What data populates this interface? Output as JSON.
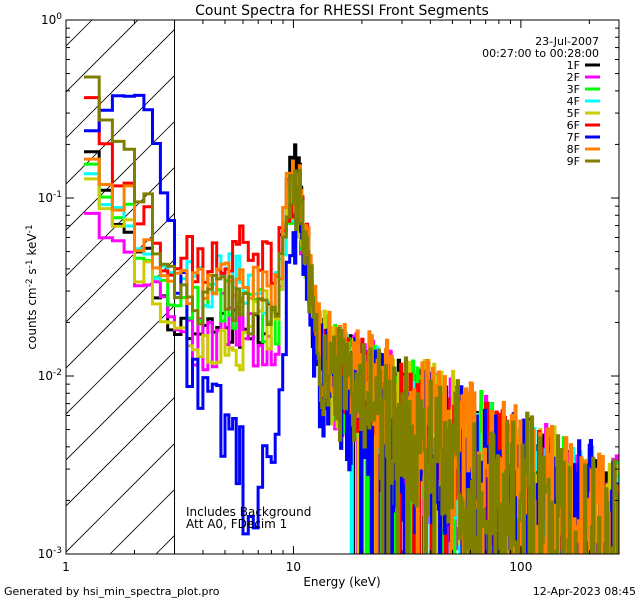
{
  "chart_data": {
    "type": "line",
    "title": "Count Spectra for RHESSI Front Segments",
    "xlabel": "Energy (keV)",
    "ylabel_parts": {
      "base": "counts cm",
      "exp1": "-2",
      "mid": " s",
      "exp2": "-1",
      "tail": " keV",
      "exp3": "-1"
    },
    "xscale": "log",
    "yscale": "log",
    "xlim": [
      1,
      270
    ],
    "ylim": [
      0.001,
      1
    ],
    "x_ticks": [
      {
        "value": 1,
        "label": "1"
      },
      {
        "value": 10,
        "label": "10"
      },
      {
        "value": 100,
        "label": "100"
      }
    ],
    "y_ticks": [
      {
        "value": 1,
        "base": "10",
        "exp": "0"
      },
      {
        "value": 0.1,
        "base": "10",
        "exp": "-1"
      },
      {
        "value": 0.01,
        "base": "10",
        "exp": "-2"
      },
      {
        "value": 0.001,
        "base": "10",
        "exp": "-3"
      }
    ],
    "date": "23-Jul-2007",
    "time_range": "00:27:00 to 00:28:00",
    "shaded_region": {
      "xmin": 1,
      "xmax": 3
    },
    "annotations": [
      "Includes Background",
      "Att A0, FDecim 1"
    ],
    "series": [
      {
        "name": "1F",
        "color": "#000000",
        "low": [
          0.2,
          0.17,
          0.12,
          0.075,
          0.058,
          0.046,
          0.04,
          0.032,
          0.026,
          0.021,
          0.019,
          0.02
        ],
        "mid": [
          0.019,
          0.02,
          0.021,
          0.019
        ],
        "spike": [
          0.045,
          0.09,
          0.14,
          0.155,
          0.13,
          0.085,
          0.05,
          0.03,
          0.02,
          0.016
        ],
        "tail_ref": 0.012,
        "jitter": 0.25,
        "seed": 11
      },
      {
        "name": "2F",
        "color": "#ff00ff",
        "low": [
          0.09,
          0.085,
          0.065,
          0.05,
          0.042,
          0.038,
          0.034,
          0.03,
          0.025,
          0.02,
          0.016,
          0.014
        ],
        "mid": [
          0.016,
          0.02,
          0.015,
          0.014
        ],
        "spike": [
          0.03,
          0.06,
          0.09,
          0.1,
          0.095,
          0.07,
          0.045,
          0.03,
          0.02,
          0.015
        ],
        "tail_ref": 0.011,
        "jitter": 0.3,
        "seed": 22
      },
      {
        "name": "3F",
        "color": "#00ff00",
        "low": [
          0.17,
          0.15,
          0.11,
          0.08,
          0.06,
          0.048,
          0.04,
          0.035,
          0.03,
          0.027,
          0.025,
          0.024
        ],
        "mid": [
          0.024,
          0.025,
          0.022,
          0.02
        ],
        "spike": [
          0.04,
          0.07,
          0.1,
          0.11,
          0.1,
          0.075,
          0.05,
          0.032,
          0.022,
          0.017
        ],
        "tail_ref": 0.012,
        "jitter": 0.28,
        "seed": 33
      },
      {
        "name": "4F",
        "color": "#00ffff",
        "low": [
          0.15,
          0.13,
          0.1,
          0.075,
          0.058,
          0.048,
          0.042,
          0.038,
          0.035,
          0.033,
          0.032,
          0.034
        ],
        "mid": [
          0.034,
          0.036,
          0.032,
          0.03
        ],
        "spike": [
          0.038,
          0.065,
          0.09,
          0.1,
          0.095,
          0.07,
          0.048,
          0.03,
          0.022,
          0.017
        ],
        "tail_ref": 0.012,
        "jitter": 0.25,
        "seed": 44
      },
      {
        "name": "5F",
        "color": "#cccc00",
        "low": [
          0.14,
          0.12,
          0.095,
          0.07,
          0.05,
          0.04,
          0.034,
          0.03,
          0.024,
          0.02,
          0.017,
          0.016
        ],
        "mid": [
          0.016,
          0.014,
          0.018,
          0.02
        ],
        "spike": [
          0.035,
          0.06,
          0.085,
          0.095,
          0.09,
          0.065,
          0.045,
          0.03,
          0.021,
          0.016
        ],
        "tail_ref": 0.012,
        "jitter": 0.3,
        "seed": 55
      },
      {
        "name": "6F",
        "color": "#ff0000",
        "low": [
          0.4,
          0.33,
          0.22,
          0.14,
          0.1,
          0.075,
          0.058,
          0.05,
          0.045,
          0.043,
          0.042,
          0.045
        ],
        "mid": [
          0.045,
          0.05,
          0.047,
          0.043
        ],
        "spike": [
          0.05,
          0.07,
          0.09,
          0.1,
          0.095,
          0.075,
          0.052,
          0.034,
          0.024,
          0.018
        ],
        "tail_ref": 0.012,
        "jitter": 0.25,
        "seed": 66
      },
      {
        "name": "7F",
        "color": "#0000ff",
        "low": [
          0.26,
          0.3,
          0.34,
          0.37,
          0.37,
          0.35,
          0.3,
          0.2,
          0.12,
          0.07,
          0.035,
          0.02
        ],
        "mid": [
          0.009,
          0.004,
          0.002,
          0.003
        ],
        "spike": [
          0.008,
          0.02,
          0.04,
          0.06,
          0.07,
          0.055,
          0.035,
          0.022,
          0.015,
          0.011
        ],
        "tail_ref": 0.009,
        "jitter": 0.35,
        "seed": 77
      },
      {
        "name": "8F",
        "color": "#ff8000",
        "low": [
          0.18,
          0.16,
          0.13,
          0.1,
          0.075,
          0.06,
          0.05,
          0.044,
          0.04,
          0.037,
          0.036,
          0.036
        ],
        "mid": [
          0.036,
          0.038,
          0.035,
          0.033
        ],
        "spike": [
          0.045,
          0.075,
          0.1,
          0.115,
          0.12,
          0.09,
          0.06,
          0.038,
          0.026,
          0.019
        ],
        "tail_ref": 0.014,
        "jitter": 0.25,
        "seed": 88
      },
      {
        "name": "9F",
        "color": "#808000",
        "low": [
          0.52,
          0.45,
          0.3,
          0.2,
          0.14,
          0.1,
          0.075,
          0.058,
          0.045,
          0.036,
          0.03,
          0.027
        ],
        "mid": [
          0.027,
          0.025,
          0.026,
          0.024
        ],
        "spike": [
          0.04,
          0.065,
          0.09,
          0.1,
          0.095,
          0.07,
          0.047,
          0.03,
          0.021,
          0.015
        ],
        "tail_ref": 0.011,
        "jitter": 0.3,
        "seed": 99
      }
    ]
  },
  "footer": {
    "left": "Generated by hsi_min_spectra_plot.pro",
    "right": "12-Apr-2023 08:45"
  }
}
